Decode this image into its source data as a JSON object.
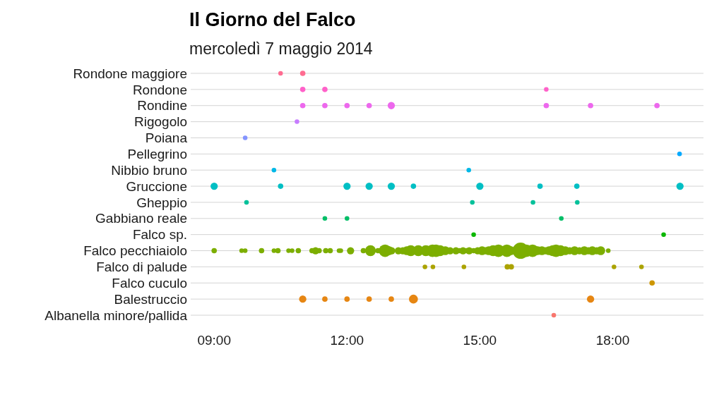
{
  "chart_data": {
    "type": "bubble",
    "title": "Il Giorno del Falco",
    "subtitle": "mercoledì 7 maggio 2014",
    "orientation": "horizontal",
    "legend": false,
    "categories": [
      "Rondone maggiore",
      "Rondone",
      "Rondine",
      "Rigogolo",
      "Poiana",
      "Pellegrino",
      "Nibbio bruno",
      "Gruccione",
      "Gheppio",
      "Gabbiano reale",
      "Falco sp.",
      "Falco pecchiaiolo",
      "Falco di palude",
      "Falco cuculo",
      "Balestruccio",
      "Albanella minore/pallida"
    ],
    "xlim": [
      8.47,
      20.05
    ],
    "xticks": [
      {
        "value": 9,
        "label": "09:00"
      },
      {
        "value": 12,
        "label": "12:00"
      },
      {
        "value": 15,
        "label": "15:00"
      },
      {
        "value": 18,
        "label": "18:00"
      }
    ],
    "grid": "y",
    "series": [
      {
        "color": "#ff6c91",
        "x": [
          "Rondone maggiore",
          "Rondone maggiore"
        ],
        "values": [
          10.5,
          11.0
        ],
        "sizes": [
          0.08,
          0.11
        ]
      },
      {
        "color": "#ff61c9",
        "x": [
          "Rondone",
          "Rondone",
          "Rondone"
        ],
        "values": [
          11.0,
          11.5,
          16.5
        ],
        "sizes": [
          0.11,
          0.11,
          0.08
        ]
      },
      {
        "color": "#ed68ed",
        "x": [
          "Rondine",
          "Rondine",
          "Rondine",
          "Rondine",
          "Rondine",
          "Rondine",
          "Rondine",
          "Rondine"
        ],
        "values": [
          11.0,
          11.5,
          12.0,
          12.5,
          13.0,
          16.5,
          17.5,
          19.0
        ],
        "sizes": [
          0.11,
          0.11,
          0.11,
          0.11,
          0.2,
          0.11,
          0.11,
          0.11
        ]
      },
      {
        "color": "#c77cff",
        "x": [
          "Rigogolo"
        ],
        "values": [
          10.87
        ],
        "sizes": [
          0.08
        ]
      },
      {
        "color": "#8494ff",
        "x": [
          "Poiana"
        ],
        "values": [
          9.7
        ],
        "sizes": [
          0.08
        ]
      },
      {
        "color": "#00a9ff",
        "x": [
          "Pellegrino"
        ],
        "values": [
          19.51
        ],
        "sizes": [
          0.08
        ]
      },
      {
        "color": "#00b8e7",
        "x": [
          "Nibbio bruno",
          "Nibbio bruno"
        ],
        "values": [
          10.35,
          14.75
        ],
        "sizes": [
          0.08,
          0.08
        ]
      },
      {
        "color": "#00bfc4",
        "x": [
          "Gruccione",
          "Gruccione",
          "Gruccione",
          "Gruccione",
          "Gruccione",
          "Gruccione",
          "Gruccione",
          "Gruccione",
          "Gruccione",
          "Gruccione"
        ],
        "values": [
          9.0,
          10.5,
          12.0,
          12.5,
          13.0,
          13.5,
          15.0,
          16.36,
          17.19,
          19.52
        ],
        "sizes": [
          0.2,
          0.11,
          0.2,
          0.2,
          0.2,
          0.11,
          0.2,
          0.11,
          0.11,
          0.2
        ]
      },
      {
        "color": "#00c19a",
        "x": [
          "Gheppio",
          "Gheppio",
          "Gheppio",
          "Gheppio"
        ],
        "values": [
          9.73,
          14.83,
          16.2,
          17.2
        ],
        "sizes": [
          0.08,
          0.08,
          0.08,
          0.08
        ]
      },
      {
        "color": "#00be67",
        "x": [
          "Gabbiano reale",
          "Gabbiano reale",
          "Gabbiano reale"
        ],
        "values": [
          11.5,
          12.0,
          16.84
        ],
        "sizes": [
          0.08,
          0.08,
          0.08
        ]
      },
      {
        "color": "#0cb702",
        "x": [
          "Falco sp.",
          "Falco sp."
        ],
        "values": [
          14.86,
          19.15
        ],
        "sizes": [
          0.08,
          0.08
        ]
      },
      {
        "color": "#7cae00",
        "x": [
          "Falco pecchiaiolo",
          "Falco pecchiaiolo",
          "Falco pecchiaiolo",
          "Falco pecchiaiolo",
          "Falco pecchiaiolo",
          "Falco pecchiaiolo",
          "Falco pecchiaiolo",
          "Falco pecchiaiolo",
          "Falco pecchiaiolo",
          "Falco pecchiaiolo",
          "Falco pecchiaiolo",
          "Falco pecchiaiolo",
          "Falco pecchiaiolo",
          "Falco pecchiaiolo",
          "Falco pecchiaiolo",
          "Falco pecchiaiolo",
          "Falco pecchiaiolo",
          "Falco pecchiaiolo",
          "Falco pecchiaiolo",
          "Falco pecchiaiolo",
          "Falco pecchiaiolo",
          "Falco pecchiaiolo",
          "Falco pecchiaiolo",
          "Falco pecchiaiolo",
          "Falco pecchiaiolo",
          "Falco pecchiaiolo",
          "Falco pecchiaiolo",
          "Falco pecchiaiolo",
          "Falco pecchiaiolo",
          "Falco pecchiaiolo",
          "Falco pecchiaiolo",
          "Falco pecchiaiolo",
          "Falco pecchiaiolo",
          "Falco pecchiaiolo",
          "Falco pecchiaiolo",
          "Falco pecchiaiolo",
          "Falco pecchiaiolo",
          "Falco pecchiaiolo",
          "Falco pecchiaiolo",
          "Falco pecchiaiolo",
          "Falco pecchiaiolo",
          "Falco pecchiaiolo",
          "Falco pecchiaiolo",
          "Falco pecchiaiolo",
          "Falco pecchiaiolo",
          "Falco pecchiaiolo",
          "Falco pecchiaiolo",
          "Falco pecchiaiolo",
          "Falco pecchiaiolo",
          "Falco pecchiaiolo",
          "Falco pecchiaiolo",
          "Falco pecchiaiolo",
          "Falco pecchiaiolo",
          "Falco pecchiaiolo",
          "Falco pecchiaiolo",
          "Falco pecchiaiolo",
          "Falco pecchiaiolo",
          "Falco pecchiaiolo",
          "Falco pecchiaiolo",
          "Falco pecchiaiolo",
          "Falco pecchiaiolo",
          "Falco pecchiaiolo",
          "Falco pecchiaiolo",
          "Falco pecchiaiolo",
          "Falco pecchiaiolo",
          "Falco pecchiaiolo",
          "Falco pecchiaiolo",
          "Falco pecchiaiolo"
        ],
        "values": [
          9.0,
          9.62,
          9.7,
          10.07,
          10.35,
          10.44,
          10.68,
          10.76,
          10.9,
          11.21,
          11.29,
          11.37,
          11.52,
          11.62,
          11.82,
          11.86,
          12.08,
          12.37,
          12.53,
          12.7,
          12.86,
          12.95,
          13.01,
          13.16,
          13.26,
          13.35,
          13.44,
          13.61,
          13.78,
          13.93,
          14.01,
          14.1,
          14.22,
          14.33,
          14.46,
          14.54,
          14.62,
          14.7,
          14.76,
          14.86,
          14.95,
          15.05,
          15.13,
          15.2,
          15.3,
          15.42,
          15.61,
          15.7,
          15.92,
          16.05,
          16.19,
          16.3,
          16.4,
          16.48,
          16.56,
          16.65,
          16.72,
          16.82,
          16.93,
          17.03,
          17.14,
          17.25,
          17.36,
          17.45,
          17.54,
          17.64,
          17.73,
          17.9
        ],
        "sizes": [
          0.11,
          0.08,
          0.08,
          0.11,
          0.08,
          0.11,
          0.08,
          0.08,
          0.11,
          0.11,
          0.2,
          0.11,
          0.11,
          0.11,
          0.08,
          0.08,
          0.2,
          0.11,
          0.45,
          0.11,
          0.6,
          0.3,
          0.2,
          0.2,
          0.2,
          0.3,
          0.45,
          0.45,
          0.45,
          0.6,
          0.6,
          0.45,
          0.3,
          0.2,
          0.2,
          0.11,
          0.2,
          0.11,
          0.2,
          0.11,
          0.2,
          0.3,
          0.2,
          0.3,
          0.45,
          0.6,
          0.6,
          0.3,
          1,
          0.6,
          0.6,
          0.3,
          0.3,
          0.2,
          0.3,
          0.45,
          0.6,
          0.45,
          0.3,
          0.2,
          0.3,
          0.2,
          0.3,
          0.2,
          0.3,
          0.2,
          0.3,
          0.08
        ]
      },
      {
        "color": "#aba300",
        "x": [
          "Falco di palude",
          "Falco di palude",
          "Falco di palude",
          "Falco di palude",
          "Falco di palude",
          "Falco di palude",
          "Falco di palude"
        ],
        "values": [
          13.76,
          13.94,
          14.64,
          15.62,
          15.71,
          18.03,
          18.65
        ],
        "sizes": [
          0.08,
          0.08,
          0.08,
          0.11,
          0.11,
          0.08,
          0.08
        ]
      },
      {
        "color": "#cd9600",
        "x": [
          "Falco cuculo"
        ],
        "values": [
          18.89
        ],
        "sizes": [
          0.11
        ]
      },
      {
        "color": "#e68613",
        "x": [
          "Balestruccio",
          "Balestruccio",
          "Balestruccio",
          "Balestruccio",
          "Balestruccio",
          "Balestruccio",
          "Balestruccio"
        ],
        "values": [
          11.0,
          11.5,
          12.0,
          12.5,
          13.0,
          13.5,
          17.5
        ],
        "sizes": [
          0.2,
          0.11,
          0.11,
          0.11,
          0.11,
          0.3,
          0.2
        ]
      },
      {
        "color": "#f8766d",
        "x": [
          "Albanella minore/pallida"
        ],
        "values": [
          16.67
        ],
        "sizes": [
          0.08
        ]
      }
    ]
  }
}
